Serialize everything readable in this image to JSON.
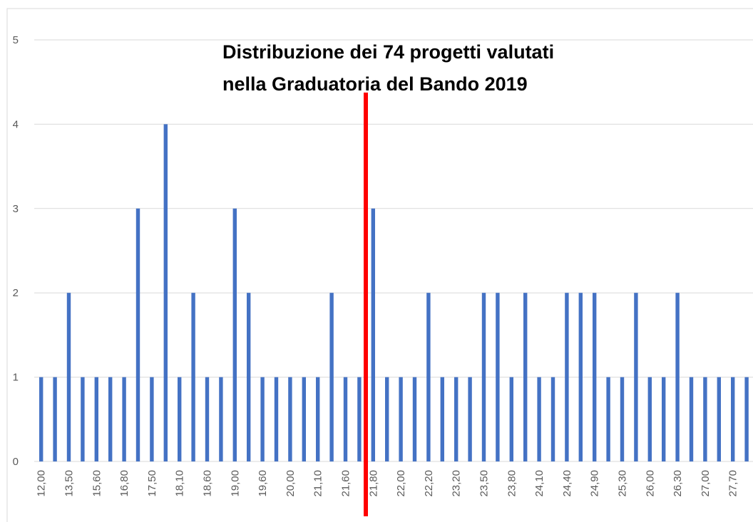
{
  "chart_data": {
    "type": "bar",
    "title": "Distribuzione dei 74 progetti valutati",
    "subtitle": "nella Graduatoria del Bando 2019",
    "categories": [
      "12,00",
      null,
      "13,50",
      null,
      "15,60",
      null,
      "16,80",
      null,
      "17,50",
      null,
      "18,10",
      null,
      "18,60",
      null,
      "19,00",
      null,
      "19,60",
      null,
      "20,00",
      null,
      "21,10",
      null,
      "21,60",
      null,
      "21,80",
      null,
      "22,00",
      null,
      "22,20",
      null,
      "23,20",
      null,
      "23,50",
      null,
      "23,80",
      null,
      "24,10",
      null,
      "24,40",
      null,
      "24,90",
      null,
      "25,30",
      null,
      "26,00",
      null,
      "26,30",
      null,
      "27,00",
      null,
      "27,70",
      null
    ],
    "values": [
      1,
      1,
      2,
      1,
      1,
      1,
      1,
      3,
      1,
      4,
      1,
      2,
      1,
      1,
      3,
      2,
      1,
      1,
      1,
      1,
      1,
      2,
      1,
      1,
      3,
      1,
      1,
      1,
      2,
      1,
      1,
      1,
      2,
      2,
      1,
      2,
      1,
      1,
      2,
      2,
      2,
      1,
      1,
      2,
      1,
      1,
      2,
      1,
      1,
      1,
      1,
      1
    ],
    "color": "#4472c4",
    "ylim": [
      0,
      5
    ],
    "yticks": [
      0,
      1,
      2,
      3,
      4,
      5
    ],
    "grid": true
  }
}
